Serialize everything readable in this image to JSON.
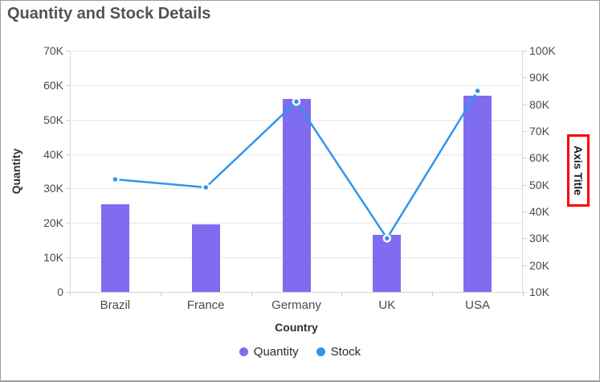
{
  "chart": {
    "title": "Quantity and Stock Details"
  },
  "chart_data": {
    "type": "bar",
    "subtype": "column-and-line-combo",
    "title": "Quantity and Stock Details",
    "categories": [
      "Brazil",
      "France",
      "Germany",
      "UK",
      "USA"
    ],
    "series": [
      {
        "name": "Quantity",
        "type": "column",
        "axis": "left",
        "color": "#7f6cef",
        "values": [
          25500,
          19500,
          56000,
          16500,
          57000
        ]
      },
      {
        "name": "Stock",
        "type": "line",
        "axis": "right",
        "color": "#2d96f0",
        "values": [
          52000,
          49000,
          81000,
          30000,
          85000
        ]
      }
    ],
    "xlabel": "Country",
    "ylabel_left": "Quantity",
    "ylabel_right": "Axis Title",
    "ylim_left": [
      0,
      70000
    ],
    "ylim_right": [
      10000,
      100000
    ],
    "yticks_left": [
      "70K",
      "60K",
      "50K",
      "40K",
      "30K",
      "20K",
      "10K",
      "0"
    ],
    "yticks_right": [
      "100K",
      "90K",
      "80K",
      "70K",
      "60K",
      "50K",
      "40K",
      "30K",
      "20K",
      "10K"
    ],
    "grid": "horizontal",
    "legend_position": "bottom-center",
    "axis_title_highlight_color": "#ff0000",
    "marker": {
      "shape": "circle",
      "fill": "#2d96f0",
      "border": "#ffffff"
    }
  }
}
